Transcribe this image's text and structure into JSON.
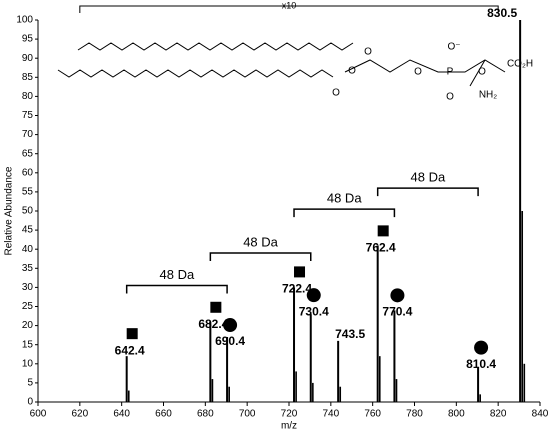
{
  "chart_data": {
    "type": "spectrum",
    "xlabel": "m/z",
    "ylabel": "Relative Abundance",
    "xlim": [
      600,
      840
    ],
    "xticks": [
      600,
      620,
      640,
      660,
      680,
      700,
      720,
      740,
      760,
      780,
      800,
      820,
      840
    ],
    "ylim": [
      0,
      100
    ],
    "yticks": [
      0,
      5,
      10,
      15,
      20,
      25,
      30,
      35,
      40,
      45,
      50,
      55,
      60,
      65,
      70,
      75,
      80,
      85,
      90,
      95,
      100
    ],
    "color": "#000000",
    "peaks": {
      "x": [
        642.4,
        682.4,
        690.4,
        722.4,
        730.4,
        743.5,
        762.4,
        770.4,
        810.4,
        830.5
      ],
      "values": [
        12,
        21,
        17,
        30,
        23,
        16,
        41,
        24,
        9,
        100
      ],
      "markers": [
        "square",
        "square",
        "circle",
        "square",
        "circle",
        null,
        "square",
        "circle",
        "circle",
        null
      ]
    },
    "minor_peaks": {
      "x": [
        643.4,
        683.4,
        691.4,
        723.4,
        731.4,
        744.5,
        763.4,
        771.4,
        811.4,
        831.5,
        832.5
      ],
      "values": [
        3,
        6,
        4,
        8,
        5,
        4,
        12,
        6,
        2,
        50,
        10
      ]
    },
    "scale_annotation": {
      "label": "x10",
      "x": [
        620,
        820
      ]
    },
    "brackets": [
      {
        "label": "48 Da",
        "x": [
          642.4,
          690.4
        ],
        "y": 30.5
      },
      {
        "label": "48 Da",
        "x": [
          682.4,
          730.4
        ],
        "y": 39
      },
      {
        "label": "48 Da",
        "x": [
          722.4,
          770.4
        ],
        "y": 50.5
      },
      {
        "label": "48 Da",
        "x": [
          762.4,
          810.4
        ],
        "y": 56
      }
    ],
    "structure_labels": [
      "O",
      "O",
      "O",
      "O",
      "P",
      "O⁻",
      "O",
      "O",
      "CO₂H",
      "NH₂"
    ]
  }
}
